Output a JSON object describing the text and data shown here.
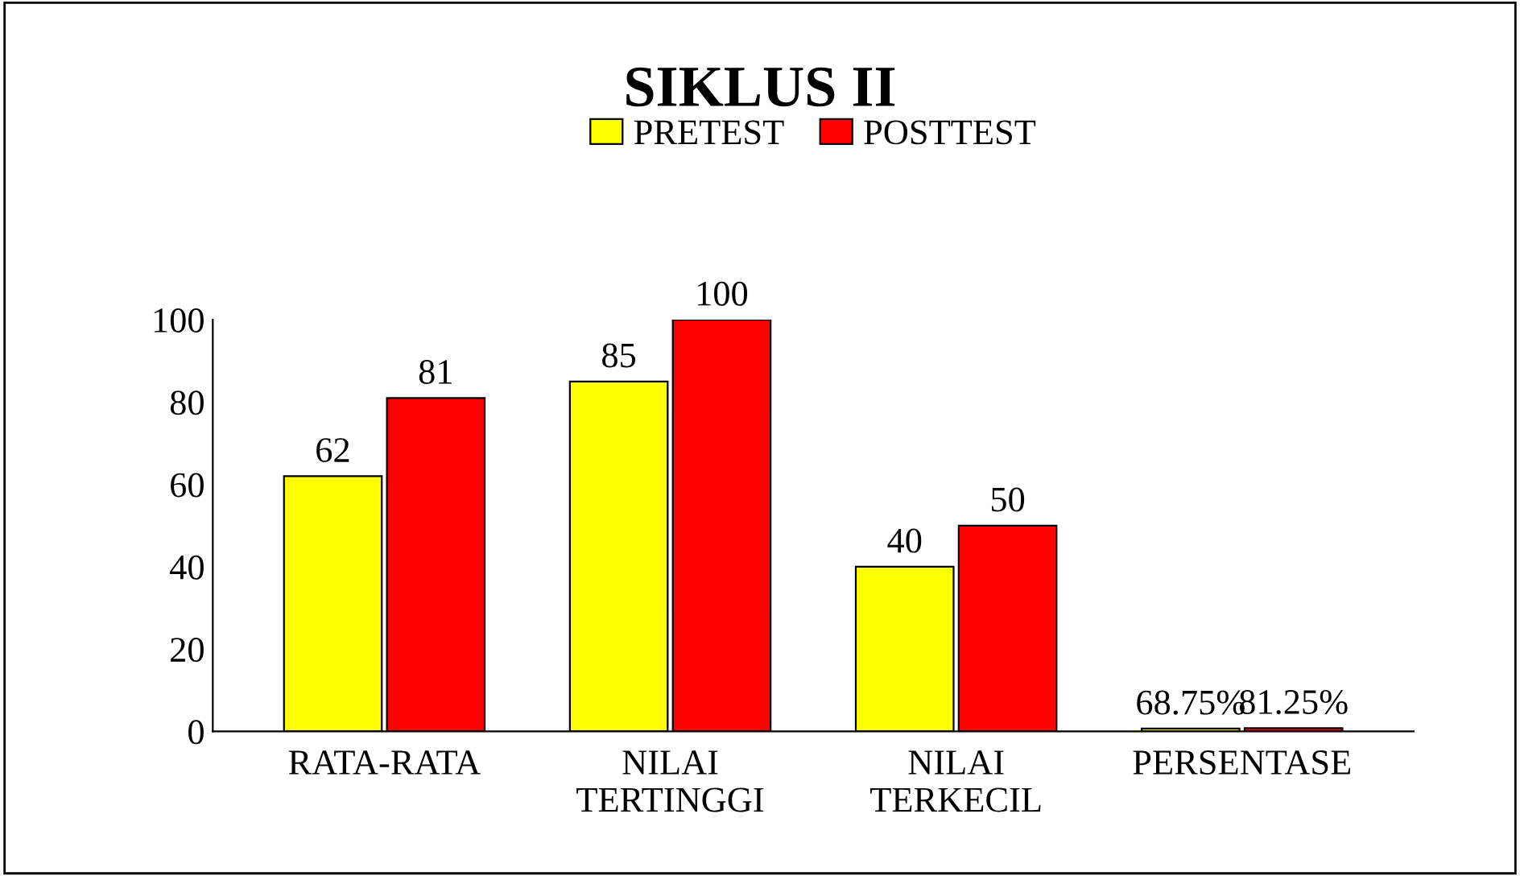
{
  "chart_data": {
    "type": "bar",
    "title": "SIKLUS II",
    "categories": [
      "RATA-RATA",
      "NILAI TERTINGGI",
      "NILAI TERKECIL",
      "PERSENTASE"
    ],
    "series": [
      {
        "name": "PRETEST",
        "color": "#ffff00",
        "values": [
          62,
          85,
          40,
          0.6875
        ],
        "value_labels": [
          "62",
          "85",
          "40",
          "68.75%"
        ]
      },
      {
        "name": "POSTTEST",
        "color": "#ff0000",
        "values": [
          81,
          100,
          50,
          0.8125
        ],
        "value_labels": [
          "81",
          "100",
          "50",
          "81.25%"
        ]
      }
    ],
    "ylim": [
      0,
      100
    ],
    "yticks": [
      0,
      20,
      40,
      60,
      80,
      100
    ],
    "grid": false,
    "legend": "top"
  }
}
